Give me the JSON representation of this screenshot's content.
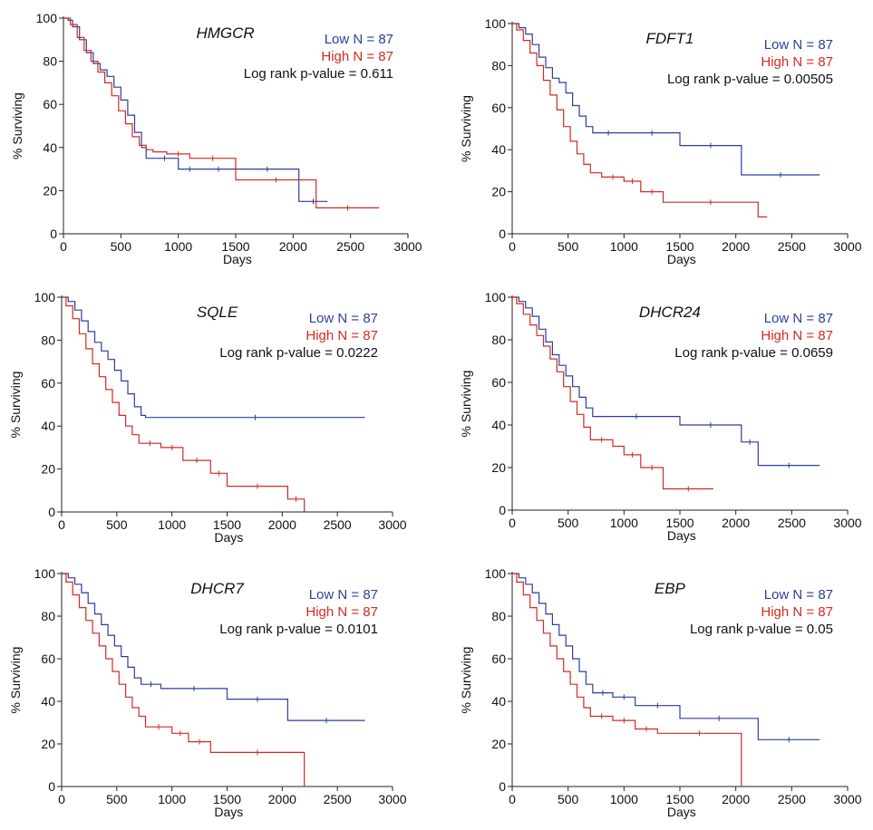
{
  "chart_data": [
    {
      "type": "line",
      "title": "HMGCR",
      "xlabel": "Days",
      "ylabel": "% Surviving",
      "xlim": [
        0,
        3000
      ],
      "ylim": [
        0,
        100
      ],
      "xticks": [
        0,
        500,
        1000,
        1500,
        2000,
        2500,
        3000
      ],
      "yticks": [
        0,
        20,
        40,
        60,
        80,
        100
      ],
      "legend": {
        "low": "Low N = 87",
        "high": "High N = 87",
        "pvalue": "Log rank p-value = 0.611"
      },
      "series": [
        {
          "group": "low",
          "color": "#2b3f9e",
          "x": [
            0,
            40,
            80,
            140,
            200,
            260,
            320,
            380,
            440,
            500,
            560,
            620,
            680,
            720,
            760,
            1000,
            1200,
            1500,
            2050,
            2300
          ],
          "y": [
            100,
            99,
            96,
            90,
            84,
            79,
            76,
            73,
            68,
            62,
            55,
            47,
            40,
            35,
            35,
            30,
            30,
            30,
            15,
            15
          ]
        },
        {
          "group": "high",
          "color": "#d42a20",
          "x": [
            0,
            60,
            120,
            180,
            240,
            300,
            360,
            420,
            480,
            540,
            600,
            660,
            720,
            780,
            900,
            1100,
            1500,
            2200,
            2750
          ],
          "y": [
            100,
            97,
            91,
            85,
            80,
            75,
            70,
            64,
            57,
            51,
            45,
            41,
            39,
            38,
            37,
            35,
            25,
            12,
            12
          ]
        }
      ]
    },
    {
      "type": "line",
      "title": "FDFT1",
      "xlabel": "Days",
      "ylabel": "% Surviving",
      "xlim": [
        0,
        3000
      ],
      "ylim": [
        0,
        100
      ],
      "xticks": [
        0,
        500,
        1000,
        1500,
        2000,
        2500,
        3000
      ],
      "yticks": [
        0,
        20,
        40,
        60,
        80,
        100
      ],
      "legend": {
        "low": "Low N = 87",
        "high": "High N = 87",
        "pvalue": "Log rank p-value = 0.00505"
      },
      "series": [
        {
          "group": "low",
          "color": "#2b3f9e",
          "x": [
            0,
            60,
            120,
            180,
            240,
            300,
            360,
            420,
            480,
            540,
            600,
            660,
            720,
            1000,
            1500,
            2050,
            2750
          ],
          "y": [
            100,
            98,
            95,
            90,
            84,
            79,
            74,
            72,
            67,
            61,
            56,
            51,
            48,
            48,
            42,
            28,
            28
          ]
        },
        {
          "group": "high",
          "color": "#d42a20",
          "x": [
            0,
            40,
            100,
            160,
            220,
            280,
            340,
            400,
            460,
            520,
            580,
            640,
            700,
            800,
            1000,
            1150,
            1350,
            2200,
            2280
          ],
          "y": [
            100,
            97,
            92,
            86,
            80,
            73,
            66,
            59,
            51,
            44,
            38,
            33,
            29,
            27,
            25,
            20,
            15,
            8,
            8
          ]
        }
      ]
    },
    {
      "type": "line",
      "title": "SQLE",
      "xlabel": "Days",
      "ylabel": "% Surviving",
      "xlim": [
        0,
        3000
      ],
      "ylim": [
        0,
        100
      ],
      "xticks": [
        0,
        500,
        1000,
        1500,
        2000,
        2500,
        3000
      ],
      "yticks": [
        0,
        20,
        40,
        60,
        80,
        100
      ],
      "legend": {
        "low": "Low N = 87",
        "high": "High N = 87",
        "pvalue": "Log rank p-value = 0.0222"
      },
      "series": [
        {
          "group": "low",
          "color": "#2b3f9e",
          "x": [
            0,
            60,
            120,
            180,
            240,
            300,
            360,
            420,
            480,
            540,
            600,
            660,
            720,
            760,
            2750
          ],
          "y": [
            100,
            98,
            94,
            89,
            84,
            79,
            75,
            71,
            66,
            61,
            55,
            49,
            45,
            44,
            44
          ]
        },
        {
          "group": "high",
          "color": "#d42a20",
          "x": [
            0,
            40,
            100,
            160,
            220,
            280,
            340,
            400,
            460,
            520,
            580,
            640,
            700,
            900,
            1100,
            1350,
            1500,
            2050,
            2200
          ],
          "y": [
            100,
            96,
            90,
            83,
            76,
            69,
            63,
            57,
            51,
            45,
            40,
            36,
            32,
            30,
            24,
            18,
            12,
            6,
            0
          ]
        }
      ]
    },
    {
      "type": "line",
      "title": "DHCR24",
      "xlabel": "Days",
      "ylabel": "% Surviving",
      "xlim": [
        0,
        3000
      ],
      "ylim": [
        0,
        100
      ],
      "xticks": [
        0,
        500,
        1000,
        1500,
        2000,
        2500,
        3000
      ],
      "yticks": [
        0,
        20,
        40,
        60,
        80,
        100
      ],
      "legend": {
        "low": "Low N = 87",
        "high": "High N = 87",
        "pvalue": "Log rank p-value = 0.0659"
      },
      "series": [
        {
          "group": "low",
          "color": "#2b3f9e",
          "x": [
            0,
            60,
            120,
            180,
            240,
            300,
            360,
            420,
            480,
            540,
            600,
            660,
            720,
            1500,
            2050,
            2200,
            2750
          ],
          "y": [
            100,
            98,
            95,
            91,
            85,
            79,
            73,
            68,
            63,
            58,
            53,
            48,
            44,
            40,
            32,
            21,
            21
          ]
        },
        {
          "group": "high",
          "color": "#d42a20",
          "x": [
            0,
            40,
            100,
            160,
            220,
            280,
            340,
            400,
            460,
            520,
            580,
            640,
            700,
            900,
            1000,
            1150,
            1350,
            1800
          ],
          "y": [
            100,
            97,
            92,
            87,
            82,
            77,
            71,
            65,
            58,
            51,
            45,
            39,
            33,
            30,
            26,
            20,
            10,
            10
          ]
        }
      ]
    },
    {
      "type": "line",
      "title": "DHCR7",
      "xlabel": "Days",
      "ylabel": "% Surviving",
      "xlim": [
        0,
        3000
      ],
      "ylim": [
        0,
        100
      ],
      "xticks": [
        0,
        500,
        1000,
        1500,
        2000,
        2500,
        3000
      ],
      "yticks": [
        0,
        20,
        40,
        60,
        80,
        100
      ],
      "legend": {
        "low": "Low N = 87",
        "high": "High N = 87",
        "pvalue": "Log rank p-value = 0.0101"
      },
      "series": [
        {
          "group": "low",
          "color": "#2b3f9e",
          "x": [
            0,
            60,
            120,
            180,
            240,
            300,
            360,
            420,
            480,
            540,
            600,
            660,
            720,
            900,
            1500,
            2050,
            2750
          ],
          "y": [
            100,
            98,
            95,
            91,
            86,
            81,
            76,
            71,
            66,
            61,
            56,
            51,
            48,
            46,
            41,
            31,
            31
          ]
        },
        {
          "group": "high",
          "color": "#d42a20",
          "x": [
            0,
            40,
            100,
            160,
            220,
            280,
            340,
            400,
            460,
            520,
            580,
            640,
            700,
            760,
            1000,
            1150,
            1350,
            2200
          ],
          "y": [
            100,
            96,
            90,
            84,
            78,
            72,
            66,
            60,
            54,
            48,
            42,
            37,
            33,
            28,
            25,
            21,
            16,
            0
          ]
        }
      ]
    },
    {
      "type": "line",
      "title": "EBP",
      "xlabel": "Days",
      "ylabel": "% Surviving",
      "xlim": [
        0,
        3000
      ],
      "ylim": [
        0,
        100
      ],
      "xticks": [
        0,
        500,
        1000,
        1500,
        2000,
        2500,
        3000
      ],
      "yticks": [
        0,
        20,
        40,
        60,
        80,
        100
      ],
      "legend": {
        "low": "Low N = 87",
        "high": "High N = 87",
        "pvalue": "Log rank p-value = 0.05"
      },
      "series": [
        {
          "group": "low",
          "color": "#2b3f9e",
          "x": [
            0,
            60,
            120,
            180,
            240,
            300,
            360,
            420,
            480,
            540,
            600,
            660,
            720,
            900,
            1100,
            1500,
            2200,
            2750
          ],
          "y": [
            100,
            98,
            95,
            91,
            86,
            81,
            76,
            71,
            66,
            60,
            54,
            48,
            44,
            42,
            38,
            32,
            22,
            22
          ]
        },
        {
          "group": "high",
          "color": "#d42a20",
          "x": [
            0,
            40,
            100,
            160,
            220,
            280,
            340,
            400,
            460,
            520,
            580,
            640,
            700,
            900,
            1100,
            1300,
            2050
          ],
          "y": [
            100,
            96,
            90,
            84,
            78,
            72,
            66,
            60,
            54,
            48,
            42,
            37,
            33,
            31,
            27,
            25,
            0
          ]
        }
      ]
    }
  ]
}
